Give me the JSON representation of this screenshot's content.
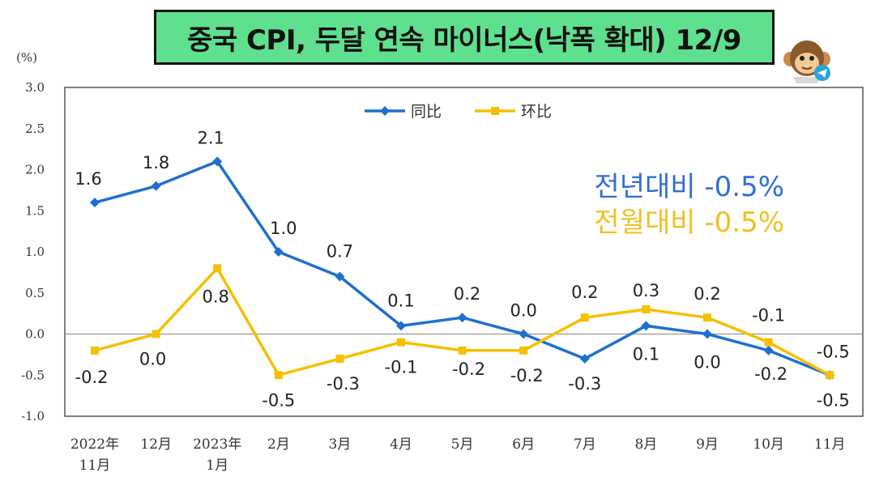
{
  "title": "중국 CPI, 두달 연속 마이너스(낙폭 확대) 12/9",
  "avatar_icon": "monkey-telegram-icon",
  "annotations": {
    "yoy": "전년대비 -0.5%",
    "mom": "전월대비 -0.5%",
    "yoy_color": "#2f6fd6",
    "mom_color": "#f0c020"
  },
  "chart_data": {
    "type": "line",
    "ylabel": "(%)",
    "ylim": [
      -1.0,
      3.0
    ],
    "yticks": [
      "3.0",
      "2.5",
      "2.0",
      "1.5",
      "1.0",
      "0.5",
      "0.0",
      "-0.5",
      "-1.0"
    ],
    "categories": [
      [
        "2022年",
        "11月"
      ],
      [
        "12月"
      ],
      [
        "2023年",
        "1月"
      ],
      [
        "2月"
      ],
      [
        "3月"
      ],
      [
        "4月"
      ],
      [
        "5月"
      ],
      [
        "6月"
      ],
      [
        "7月"
      ],
      [
        "8月"
      ],
      [
        "9月"
      ],
      [
        "10月"
      ],
      [
        "11月"
      ]
    ],
    "legend_position": "top-center",
    "series": [
      {
        "name": "同比",
        "color": "#1f6fd0",
        "marker": "diamond",
        "values": [
          1.6,
          1.8,
          2.1,
          1.0,
          0.7,
          0.1,
          0.2,
          0.0,
          -0.3,
          0.1,
          0.0,
          -0.2,
          -0.5
        ],
        "labels": [
          "1.6",
          "1.8",
          "2.1",
          "1.0",
          "0.7",
          "0.1",
          "0.2",
          "0.0",
          "-0.3",
          "0.1",
          "0.0",
          "-0.2",
          "-0.5"
        ]
      },
      {
        "name": "环比",
        "color": "#f5c000",
        "marker": "square",
        "values": [
          -0.2,
          0.0,
          0.8,
          -0.5,
          -0.3,
          -0.1,
          -0.2,
          -0.2,
          0.2,
          0.3,
          0.2,
          -0.1,
          -0.5
        ],
        "labels": [
          "-0.2",
          "0.0",
          "0.8",
          "-0.5",
          "-0.3",
          "-0.1",
          "-0.2",
          "-0.2",
          "0.2",
          "0.3",
          "0.2",
          "-0.1",
          "-0.5"
        ]
      }
    ]
  }
}
